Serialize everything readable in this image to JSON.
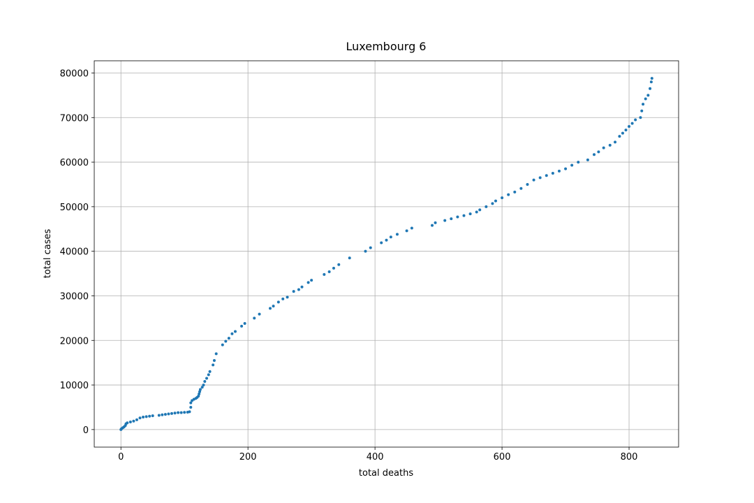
{
  "chart_data": {
    "type": "scatter",
    "title": "Luxembourg 6",
    "x_label": "total deaths",
    "y_label": "total cases",
    "color": "#1f77b4",
    "grid": true,
    "xlim": [
      -42,
      878
    ],
    "ylim": [
      -3940,
      82740
    ],
    "xticks": [
      0,
      200,
      400,
      600,
      800
    ],
    "yticks": [
      0,
      10000,
      20000,
      30000,
      40000,
      50000,
      60000,
      70000,
      80000
    ],
    "x": [
      0,
      1,
      3,
      5,
      7,
      8,
      10,
      15,
      20,
      25,
      30,
      35,
      40,
      45,
      50,
      60,
      65,
      70,
      75,
      80,
      85,
      90,
      95,
      100,
      105,
      108,
      110,
      110,
      112,
      115,
      118,
      120,
      122,
      123,
      124,
      125,
      128,
      130,
      132,
      135,
      138,
      140,
      145,
      147,
      150,
      160,
      165,
      170,
      175,
      180,
      190,
      195,
      210,
      218,
      235,
      240,
      248,
      255,
      262,
      272,
      280,
      285,
      295,
      300,
      320,
      328,
      335,
      343,
      360,
      385,
      393,
      410,
      418,
      425,
      435,
      450,
      458,
      490,
      495,
      510,
      520,
      530,
      540,
      550,
      560,
      565,
      575,
      585,
      590,
      600,
      610,
      620,
      630,
      640,
      650,
      660,
      670,
      680,
      690,
      700,
      710,
      720,
      735,
      745,
      752,
      760,
      770,
      778,
      785,
      790,
      795,
      800,
      805,
      810,
      818,
      820,
      822,
      826,
      830,
      833,
      835,
      836
    ],
    "y": [
      0,
      200,
      400,
      600,
      900,
      1300,
      1500,
      1700,
      1900,
      2200,
      2600,
      2800,
      2900,
      3000,
      3100,
      3200,
      3300,
      3400,
      3500,
      3600,
      3700,
      3800,
      3800,
      3850,
      3900,
      4000,
      5000,
      6000,
      6500,
      6800,
      7000,
      7200,
      7500,
      8000,
      8500,
      9000,
      9500,
      10000,
      10800,
      11500,
      12300,
      13000,
      14500,
      15500,
      17000,
      19000,
      19800,
      20500,
      21500,
      22000,
      23200,
      23800,
      25000,
      25900,
      27200,
      27700,
      28600,
      29300,
      29700,
      31000,
      31400,
      32000,
      33000,
      33500,
      34800,
      35400,
      36200,
      37000,
      38500,
      40000,
      40800,
      41900,
      42500,
      43200,
      43800,
      44600,
      45200,
      45800,
      46400,
      46900,
      47300,
      47700,
      48000,
      48400,
      48800,
      49300,
      50000,
      50700,
      51300,
      52000,
      52700,
      53300,
      54100,
      55000,
      56000,
      56500,
      57000,
      57500,
      58000,
      58500,
      59300,
      60000,
      60500,
      61700,
      62300,
      63200,
      63800,
      64500,
      65800,
      66500,
      67200,
      68000,
      68700,
      69500,
      70000,
      71500,
      73000,
      74200,
      75000,
      76500,
      78000,
      78800
    ]
  }
}
